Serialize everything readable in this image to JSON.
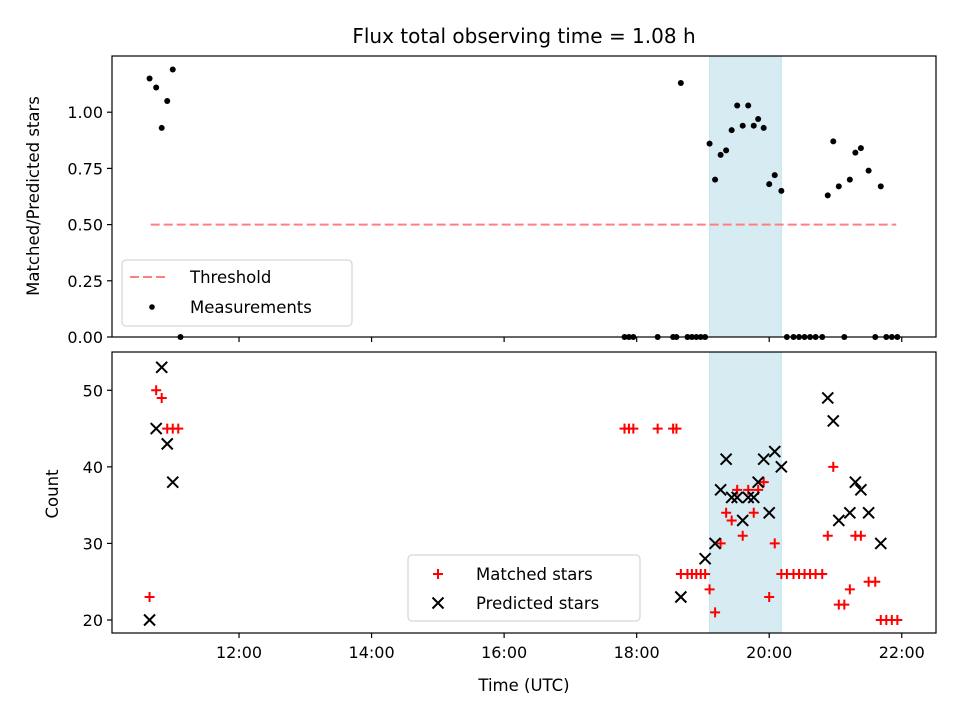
{
  "chart_data": [
    {
      "type": "scatter",
      "title": "Flux total observing time = 1.08 h",
      "xlabel": "",
      "ylabel": "Matched/Predicted stars",
      "ylim": [
        0.0,
        1.25
      ],
      "xlim": [
        "10:05",
        "22:31"
      ],
      "yticks": [
        "0.00",
        "0.25",
        "0.50",
        "0.75",
        "1.00"
      ],
      "shaded_span": [
        "19:06",
        "20:11"
      ],
      "legend_position": "lower-left",
      "threshold": {
        "name": "Threshold",
        "value": 0.5,
        "x": [
          "10:40",
          "21:55"
        ],
        "color": "#ff7f7f"
      },
      "series": [
        {
          "name": "Measurements",
          "color": "#000000",
          "points": [
            [
              "10:39",
              1.15
            ],
            [
              "10:45",
              1.11
            ],
            [
              "10:50",
              0.93
            ],
            [
              "10:55",
              1.05
            ],
            [
              "11:00",
              1.19
            ],
            [
              "11:07",
              0.0
            ],
            [
              "17:49",
              0.0
            ],
            [
              "17:53",
              0.0
            ],
            [
              "17:57",
              0.0
            ],
            [
              "18:19",
              0.0
            ],
            [
              "18:33",
              0.0
            ],
            [
              "18:36",
              0.0
            ],
            [
              "18:40",
              1.13
            ],
            [
              "18:46",
              0.0
            ],
            [
              "18:50",
              0.0
            ],
            [
              "18:54",
              0.0
            ],
            [
              "18:58",
              0.0
            ],
            [
              "19:02",
              0.0
            ],
            [
              "19:06",
              0.86
            ],
            [
              "19:11",
              0.7
            ],
            [
              "19:16",
              0.81
            ],
            [
              "19:21",
              0.83
            ],
            [
              "19:26",
              0.92
            ],
            [
              "19:31",
              1.03
            ],
            [
              "19:36",
              0.94
            ],
            [
              "19:41",
              1.03
            ],
            [
              "19:46",
              0.94
            ],
            [
              "19:50",
              0.97
            ],
            [
              "19:55",
              0.93
            ],
            [
              "20:00",
              0.68
            ],
            [
              "20:05",
              0.72
            ],
            [
              "20:11",
              0.65
            ],
            [
              "20:16",
              0.0
            ],
            [
              "20:22",
              0.0
            ],
            [
              "20:27",
              0.0
            ],
            [
              "20:32",
              0.0
            ],
            [
              "20:37",
              0.0
            ],
            [
              "20:42",
              0.0
            ],
            [
              "20:48",
              0.0
            ],
            [
              "20:53",
              0.63
            ],
            [
              "20:58",
              0.87
            ],
            [
              "21:03",
              0.67
            ],
            [
              "21:08",
              0.0
            ],
            [
              "21:13",
              0.7
            ],
            [
              "21:18",
              0.82
            ],
            [
              "21:23",
              0.84
            ],
            [
              "21:30",
              0.74
            ],
            [
              "21:36",
              0.0
            ],
            [
              "21:41",
              0.67
            ],
            [
              "21:46",
              0.0
            ],
            [
              "21:51",
              0.0
            ],
            [
              "21:56",
              0.0
            ]
          ]
        }
      ]
    },
    {
      "type": "scatter",
      "title": "",
      "xlabel": "Time (UTC)",
      "ylabel": "Count",
      "ylim": [
        18.3,
        55
      ],
      "xlim": [
        "10:05",
        "22:31"
      ],
      "xticks": [
        "12:00",
        "14:00",
        "16:00",
        "18:00",
        "20:00",
        "22:00"
      ],
      "yticks": [
        "20",
        "30",
        "40",
        "50"
      ],
      "shaded_span": [
        "19:06",
        "20:11"
      ],
      "legend_position": "lower-center",
      "series": [
        {
          "name": "Matched stars",
          "color": "#ff0000",
          "points": [
            [
              "10:39",
              23
            ],
            [
              "10:45",
              50
            ],
            [
              "10:50",
              49
            ],
            [
              "10:55",
              45
            ],
            [
              "11:00",
              45
            ],
            [
              "11:05",
              45
            ],
            [
              "17:49",
              45
            ],
            [
              "17:53",
              45
            ],
            [
              "17:57",
              45
            ],
            [
              "18:19",
              45
            ],
            [
              "18:33",
              45
            ],
            [
              "18:36",
              45
            ],
            [
              "18:40",
              26
            ],
            [
              "18:46",
              26
            ],
            [
              "18:50",
              26
            ],
            [
              "18:54",
              26
            ],
            [
              "18:58",
              26
            ],
            [
              "19:02",
              26
            ],
            [
              "19:06",
              24
            ],
            [
              "19:11",
              21
            ],
            [
              "19:16",
              30
            ],
            [
              "19:21",
              34
            ],
            [
              "19:26",
              33
            ],
            [
              "19:31",
              37
            ],
            [
              "19:36",
              31
            ],
            [
              "19:41",
              37
            ],
            [
              "19:46",
              34
            ],
            [
              "19:50",
              37
            ],
            [
              "19:55",
              38
            ],
            [
              "20:00",
              23
            ],
            [
              "20:05",
              30
            ],
            [
              "20:11",
              26
            ],
            [
              "20:16",
              26
            ],
            [
              "20:22",
              26
            ],
            [
              "20:27",
              26
            ],
            [
              "20:32",
              26
            ],
            [
              "20:37",
              26
            ],
            [
              "20:42",
              26
            ],
            [
              "20:48",
              26
            ],
            [
              "20:53",
              31
            ],
            [
              "20:58",
              40
            ],
            [
              "21:03",
              22
            ],
            [
              "21:08",
              22
            ],
            [
              "21:13",
              24
            ],
            [
              "21:18",
              31
            ],
            [
              "21:23",
              31
            ],
            [
              "21:30",
              25
            ],
            [
              "21:36",
              25
            ],
            [
              "21:41",
              20
            ],
            [
              "21:46",
              20
            ],
            [
              "21:51",
              20
            ],
            [
              "21:56",
              20
            ]
          ]
        },
        {
          "name": "Predicted stars",
          "color": "#000000",
          "points": [
            [
              "10:39",
              20
            ],
            [
              "10:45",
              45
            ],
            [
              "10:50",
              53
            ],
            [
              "10:55",
              43
            ],
            [
              "11:00",
              38
            ],
            [
              "18:40",
              23
            ],
            [
              "19:02",
              28
            ],
            [
              "19:11",
              30
            ],
            [
              "19:16",
              37
            ],
            [
              "19:21",
              41
            ],
            [
              "19:26",
              36
            ],
            [
              "19:31",
              36
            ],
            [
              "19:36",
              33
            ],
            [
              "19:41",
              36
            ],
            [
              "19:46",
              36
            ],
            [
              "19:50",
              38
            ],
            [
              "19:55",
              41
            ],
            [
              "20:00",
              34
            ],
            [
              "20:05",
              42
            ],
            [
              "20:11",
              40
            ],
            [
              "20:53",
              49
            ],
            [
              "20:58",
              46
            ],
            [
              "21:03",
              33
            ],
            [
              "21:13",
              34
            ],
            [
              "21:18",
              38
            ],
            [
              "21:23",
              37
            ],
            [
              "21:30",
              34
            ],
            [
              "21:41",
              30
            ]
          ]
        }
      ]
    }
  ]
}
